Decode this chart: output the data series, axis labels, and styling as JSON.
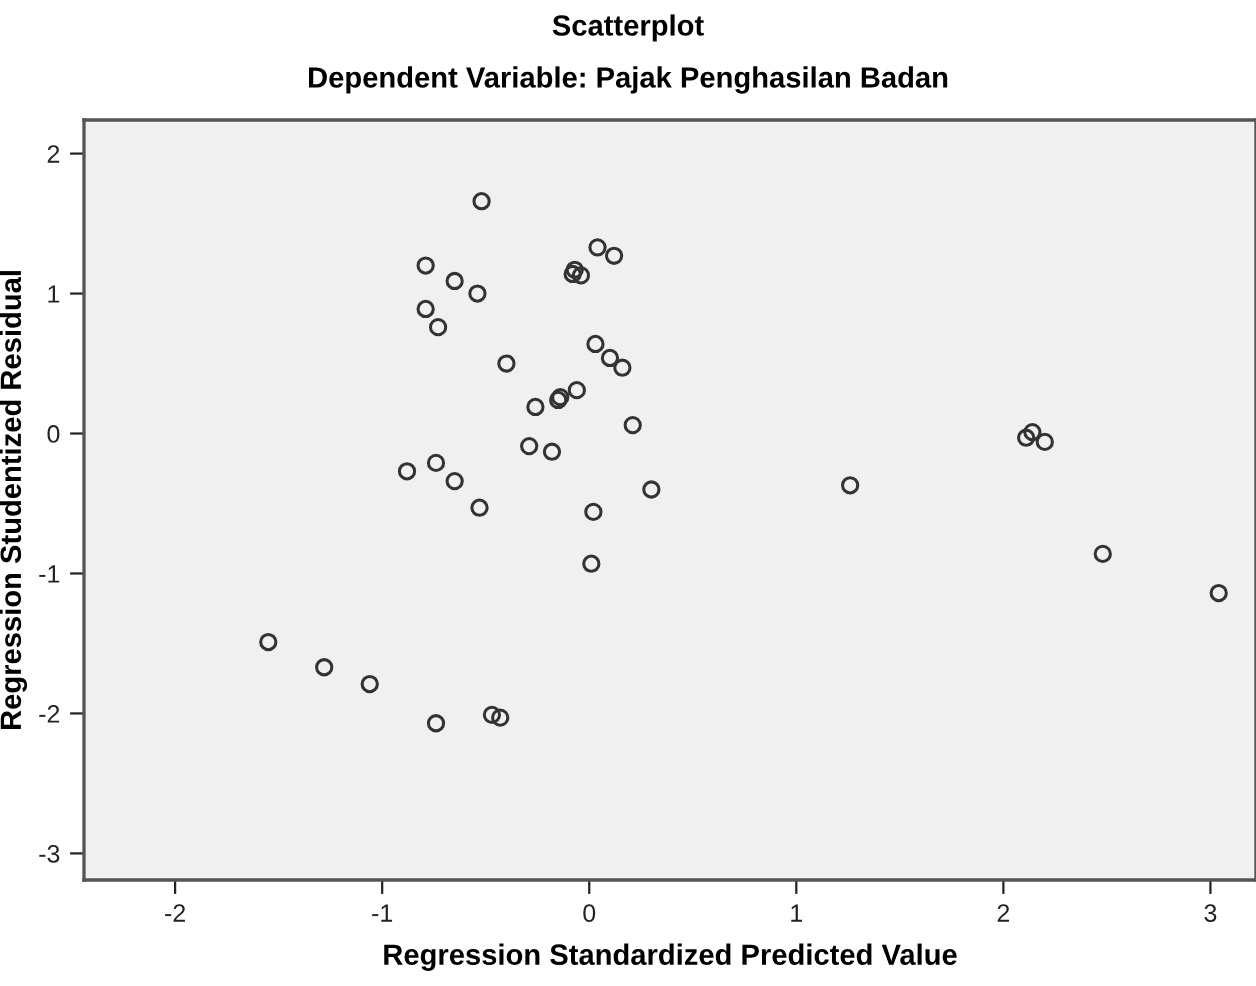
{
  "chart_data": {
    "type": "scatter",
    "title": "Scatterplot",
    "subtitle": "Dependent Variable: Pajak Penghasilan Badan",
    "xlabel": "Regression Standardized Predicted Value",
    "ylabel": "Regression Studentized Residual",
    "x": [
      -0.52,
      -0.79,
      -0.65,
      -0.54,
      -0.79,
      -0.73,
      -0.4,
      0.04,
      0.12,
      -0.07,
      -0.08,
      -0.04,
      0.03,
      0.1,
      0.16,
      -0.06,
      -0.26,
      -0.15,
      -0.14,
      0.21,
      -0.29,
      -0.18,
      -0.88,
      -0.74,
      -0.65,
      -0.53,
      0.02,
      0.3,
      0.01,
      1.26,
      2.14,
      2.11,
      2.2,
      2.48,
      3.04,
      -1.55,
      -1.28,
      -1.06,
      -0.74,
      -0.47,
      -0.43
    ],
    "values": [
      1.66,
      1.2,
      1.09,
      1.0,
      0.89,
      0.76,
      0.5,
      1.33,
      1.27,
      1.17,
      1.14,
      1.13,
      0.64,
      0.54,
      0.47,
      0.31,
      0.19,
      0.24,
      0.26,
      0.06,
      -0.09,
      -0.13,
      -0.27,
      -0.21,
      -0.34,
      -0.53,
      -0.56,
      -0.4,
      -0.93,
      -0.37,
      0.01,
      -0.03,
      -0.06,
      -0.86,
      -1.14,
      -1.49,
      -1.67,
      -1.79,
      -2.07,
      -2.01,
      -2.03
    ],
    "color": "#333333",
    "marker": "circle",
    "grid": false,
    "legend": false,
    "xlim": [
      -2.44,
      3.22
    ],
    "ylim": [
      -3.19,
      2.24
    ],
    "xticks": [
      -2,
      -1,
      0,
      1,
      2,
      3
    ],
    "yticks": [
      -3,
      -2,
      -1,
      0,
      1,
      2
    ]
  }
}
